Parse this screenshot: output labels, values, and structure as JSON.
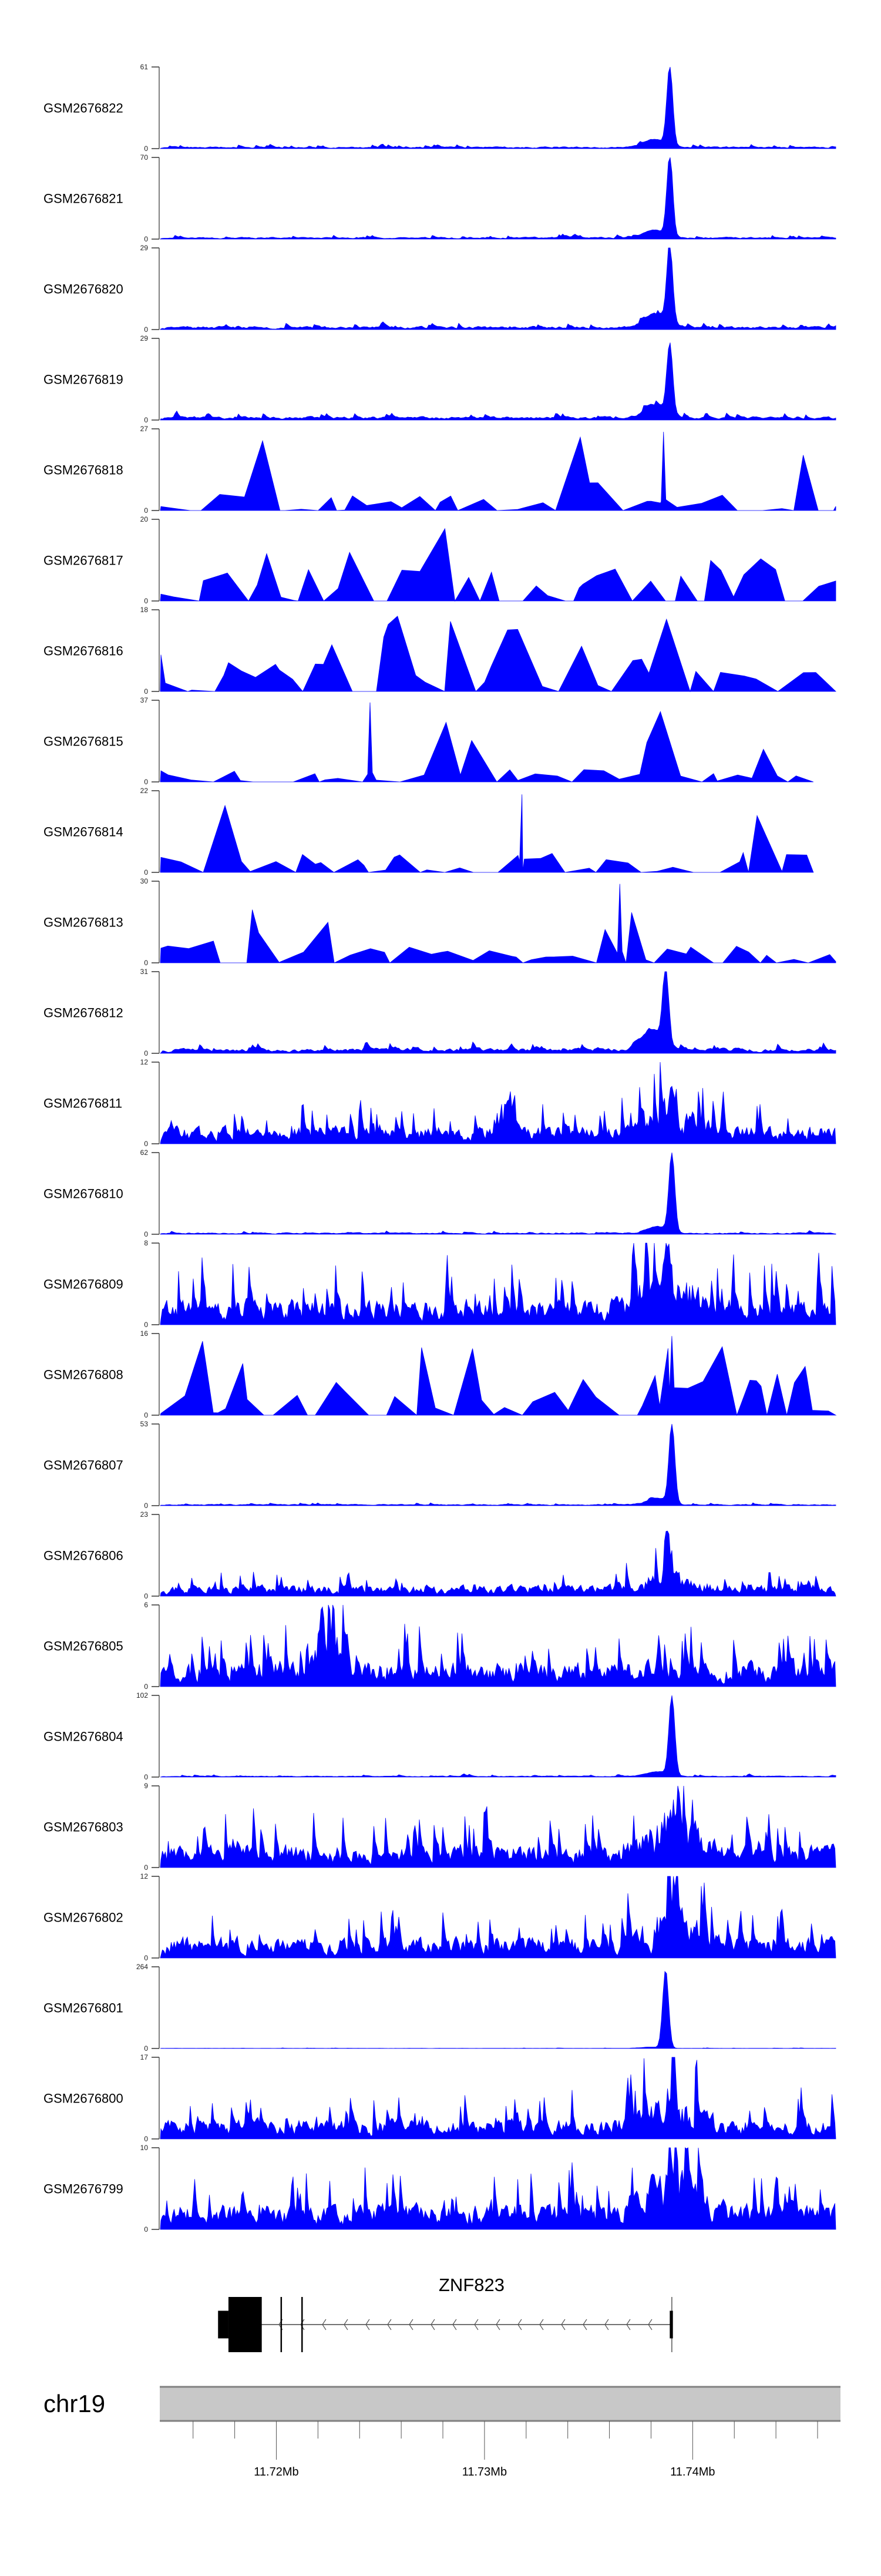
{
  "chart_data": {
    "type": "area",
    "title": "",
    "signal_color": "#0000ff",
    "chromosome": "chr19",
    "xlim_mb": [
      11.7144,
      11.7471
    ],
    "x_ticks": [
      {
        "mb": 11.716,
        "label": ""
      },
      {
        "mb": 11.718,
        "label": ""
      },
      {
        "mb": 11.72,
        "label": "11.72Mb"
      },
      {
        "mb": 11.722,
        "label": ""
      },
      {
        "mb": 11.724,
        "label": ""
      },
      {
        "mb": 11.726,
        "label": ""
      },
      {
        "mb": 11.728,
        "label": ""
      },
      {
        "mb": 11.73,
        "label": "11.73Mb"
      },
      {
        "mb": 11.732,
        "label": ""
      },
      {
        "mb": 11.734,
        "label": ""
      },
      {
        "mb": 11.736,
        "label": ""
      },
      {
        "mb": 11.738,
        "label": ""
      },
      {
        "mb": 11.74,
        "label": "11.74Mb"
      },
      {
        "mb": 11.742,
        "label": ""
      },
      {
        "mb": 11.744,
        "label": ""
      },
      {
        "mb": 11.746,
        "label": ""
      }
    ],
    "gene": {
      "name": "ZNF823",
      "strand": "-",
      "start_mb": 11.7177,
      "end_mb": 11.739,
      "exons_mb": [
        [
          11.7172,
          11.7177
        ],
        [
          11.7177,
          11.7193
        ],
        [
          11.7202,
          11.72025
        ],
        [
          11.7212,
          11.72125
        ],
        [
          11.7389,
          11.73905
        ]
      ]
    },
    "series": [
      {
        "name": "GSM2676822",
        "ymin": 0,
        "ymax": 61,
        "style": "peak",
        "peak_mb": 11.7389,
        "peak_value": 60,
        "background": 3,
        "seed": 1
      },
      {
        "name": "GSM2676821",
        "ymin": 0,
        "ymax": 70,
        "style": "peak",
        "peak_mb": 11.7389,
        "peak_value": 69,
        "background": 3.5,
        "seed": 2
      },
      {
        "name": "GSM2676820",
        "ymin": 0,
        "ymax": 29,
        "style": "peak",
        "peak_mb": 11.7389,
        "peak_value": 28,
        "background": 2.5,
        "seed": 3
      },
      {
        "name": "GSM2676819",
        "ymin": 0,
        "ymax": 29,
        "style": "peak",
        "peak_mb": 11.7389,
        "peak_value": 25,
        "background": 2.5,
        "seed": 4
      },
      {
        "name": "GSM2676818",
        "ymin": 0,
        "ymax": 27,
        "style": "sparse",
        "peak_mb": 11.7386,
        "peak_value": 26,
        "background": 6,
        "seed": 5
      },
      {
        "name": "GSM2676817",
        "ymin": 0,
        "ymax": 20,
        "style": "sparse",
        "peak_mb": 11.738,
        "peak_value": 0,
        "background": 9,
        "seed": 6
      },
      {
        "name": "GSM2676816",
        "ymin": 0,
        "ymax": 18,
        "style": "sparse",
        "peak_mb": 11.738,
        "peak_value": 0,
        "background": 9,
        "seed": 7
      },
      {
        "name": "GSM2676815",
        "ymin": 0,
        "ymax": 37,
        "style": "sparse",
        "peak_mb": 11.7245,
        "peak_value": 36,
        "background": 7,
        "end_mb": 11.7458,
        "seed": 8
      },
      {
        "name": "GSM2676814",
        "ymin": 0,
        "ymax": 22,
        "style": "sparse",
        "peak_mb": 11.7318,
        "peak_value": 21,
        "background": 6,
        "end_mb": 11.7458,
        "seed": 9
      },
      {
        "name": "GSM2676813",
        "ymin": 0,
        "ymax": 30,
        "style": "sparse",
        "peak_mb": 11.7365,
        "peak_value": 29,
        "background": 7,
        "seed": 10
      },
      {
        "name": "GSM2676812",
        "ymin": 0,
        "ymax": 31,
        "style": "peak",
        "peak_mb": 11.7387,
        "peak_value": 30,
        "background": 4,
        "seed": 11
      },
      {
        "name": "GSM2676811",
        "ymin": 0,
        "ymax": 12,
        "style": "dense",
        "peak_mb": 11.739,
        "peak_value": 11,
        "background": 2.5,
        "seed": 12
      },
      {
        "name": "GSM2676810",
        "ymin": 0,
        "ymax": 62,
        "style": "peak",
        "peak_mb": 11.739,
        "peak_value": 60,
        "background": 2.5,
        "seed": 13
      },
      {
        "name": "GSM2676809",
        "ymin": 0,
        "ymax": 8,
        "style": "dense",
        "peak_mb": 11.7387,
        "peak_value": 7.8,
        "background": 2.5,
        "seed": 14
      },
      {
        "name": "GSM2676808",
        "ymin": 0,
        "ymax": 16,
        "style": "sparse",
        "peak_mb": 11.739,
        "peak_value": 15.5,
        "background": 9,
        "seed": 15
      },
      {
        "name": "GSM2676807",
        "ymin": 0,
        "ymax": 53,
        "style": "peak",
        "peak_mb": 11.739,
        "peak_value": 52,
        "background": 2,
        "seed": 16
      },
      {
        "name": "GSM2676806",
        "ymin": 0,
        "ymax": 23,
        "style": "dense",
        "peak_mb": 11.7388,
        "peak_value": 21,
        "background": 3,
        "seed": 17
      },
      {
        "name": "GSM2676805",
        "ymin": 0,
        "ymax": 6,
        "style": "dense",
        "peak_mb": 11.7222,
        "peak_value": 5.8,
        "background": 1.8,
        "seed": 18
      },
      {
        "name": "GSM2676804",
        "ymin": 0,
        "ymax": 102,
        "style": "peak",
        "peak_mb": 11.739,
        "peak_value": 100,
        "background": 3,
        "seed": 19
      },
      {
        "name": "GSM2676803",
        "ymin": 0,
        "ymax": 9,
        "style": "dense",
        "peak_mb": 11.739,
        "peak_value": 8.8,
        "background": 2.5,
        "seed": 20
      },
      {
        "name": "GSM2676802",
        "ymin": 0,
        "ymax": 12,
        "style": "dense",
        "peak_mb": 11.739,
        "peak_value": 11.5,
        "background": 3,
        "seed": 21
      },
      {
        "name": "GSM2676801",
        "ymin": 0,
        "ymax": 264,
        "style": "peak",
        "peak_mb": 11.7387,
        "peak_value": 255,
        "background": 2,
        "seed": 22
      },
      {
        "name": "GSM2676800",
        "ymin": 0,
        "ymax": 17,
        "style": "dense",
        "peak_mb": 11.739,
        "peak_value": 16,
        "background": 4,
        "seed": 23
      },
      {
        "name": "GSM2676799",
        "ymin": 0,
        "ymax": 10,
        "style": "dense",
        "peak_mb": 11.739,
        "peak_value": 9.5,
        "background": 3,
        "seed": 24
      }
    ]
  }
}
